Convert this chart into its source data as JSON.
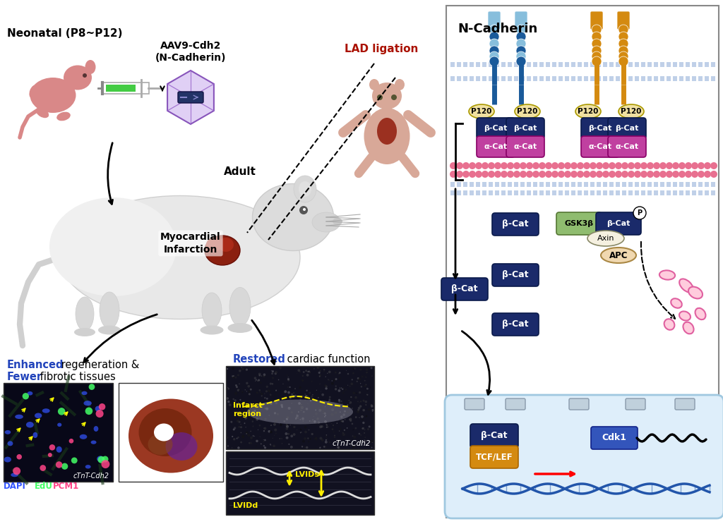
{
  "background_color": "#ffffff",
  "left_panel": {
    "neonatal_label": "Neonatal (P8~P12)",
    "aav_label": "AAV9-Cdh2\n(N-Cadherin)",
    "adult_label": "Adult",
    "lad_label": "LAD ligation",
    "mi_label": "Myocardial\nInfarction",
    "restored_label": "Restored cardiac function",
    "infarct_label": "Infarct\nregion",
    "cTnT_label": "cTnT-Cdh2",
    "lvids_label": "LVIDs",
    "lvidd_label": "LVIDd",
    "dapi_label": "DAPI",
    "edu_label": "EdU",
    "pcm1_label": "PCM1",
    "ctnt_label2": "cTnT-Cdh2",
    "enhanced1": "Enhanced",
    "enhanced2": " regeneration &",
    "fewer1": "Fewer",
    "fewer2": " fibrotic tissues"
  },
  "right_panel": {
    "title": "N-Cadherin",
    "light_blue": "#87BEDC",
    "dark_blue_cad": "#1a5a9a",
    "orange_cad": "#d48a10",
    "p120_fill": "#f0e0a0",
    "p120_edge": "#aa8800",
    "beta_cat_fill": "#1a2a6a",
    "alpha_cat_fill": "#c040a0",
    "alpha_cat_edge": "#880066",
    "actin_color": "#e87090",
    "gsk3b_fill": "#8fbc6f",
    "gsk3b_edge": "#557733",
    "axin_fill": "#f5f0e0",
    "axin_edge": "#888866",
    "apc_fill": "#f0d8b0",
    "apc_edge": "#aa8844",
    "frag_color": "#e060a0",
    "tcflef_fill": "#d48a10",
    "tcflef_edge": "#aa6600",
    "cdk1_fill": "#3355bb",
    "cdk1_edge": "#112288",
    "nucleus_fill": "#deeefa",
    "nucleus_edge": "#a0c8e0",
    "mem_color": "#a0b8d8",
    "panel_edge": "#888888",
    "dna_color": "#2255aa"
  },
  "colors": {
    "blue_text": "#2244bb",
    "red_text": "#aa1100",
    "black": "#000000",
    "white": "#ffffff"
  }
}
